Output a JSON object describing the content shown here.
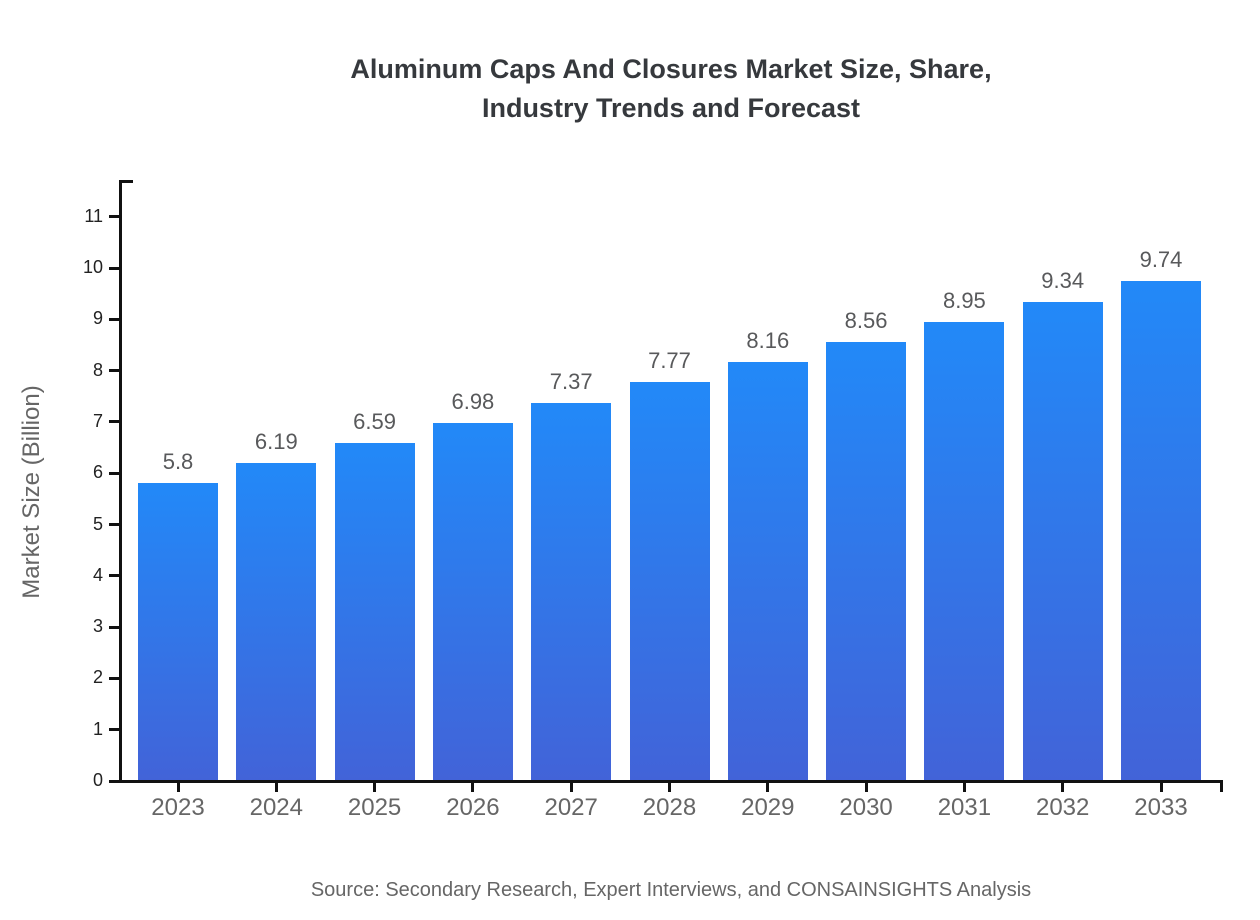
{
  "header": {
    "title_line1": "Aluminum Caps And Closures Market Size, Share,",
    "title_line2": "Industry Trends and Forecast"
  },
  "chart_data": {
    "type": "bar",
    "title": "Aluminum Caps And Closures Market Size, Share, Industry Trends and Forecast",
    "categories": [
      "2023",
      "2024",
      "2025",
      "2026",
      "2027",
      "2028",
      "2029",
      "2030",
      "2031",
      "2032",
      "2033"
    ],
    "values": [
      5.8,
      6.19,
      6.59,
      6.98,
      7.37,
      7.77,
      8.16,
      8.56,
      8.95,
      9.34,
      9.74
    ],
    "value_labels": [
      "5.8",
      "6.19",
      "6.59",
      "6.98",
      "7.37",
      "7.77",
      "8.16",
      "8.56",
      "8.95",
      "9.34",
      "9.74"
    ],
    "xlabel": "",
    "ylabel": "Market Size (Billion)",
    "yticks": [
      0,
      1,
      2,
      3,
      4,
      5,
      6,
      7,
      8,
      9,
      10,
      11
    ],
    "ylim": [
      0,
      11.7
    ],
    "grid": false,
    "legend": "none",
    "bar_color_top": "#2289f8",
    "bar_color_bottom": "#4263d8"
  },
  "footer": {
    "source": "Source: Secondary Research, Expert Interviews, and CONSAINSIGHTS Analysis"
  },
  "colors": {
    "background": "#ffffff",
    "axis": "#111111",
    "title_text": "#36393d",
    "y_tick_label": "#222222",
    "x_tick_label": "#666666",
    "value_label": "#58595b",
    "muted_text": "#666666"
  }
}
